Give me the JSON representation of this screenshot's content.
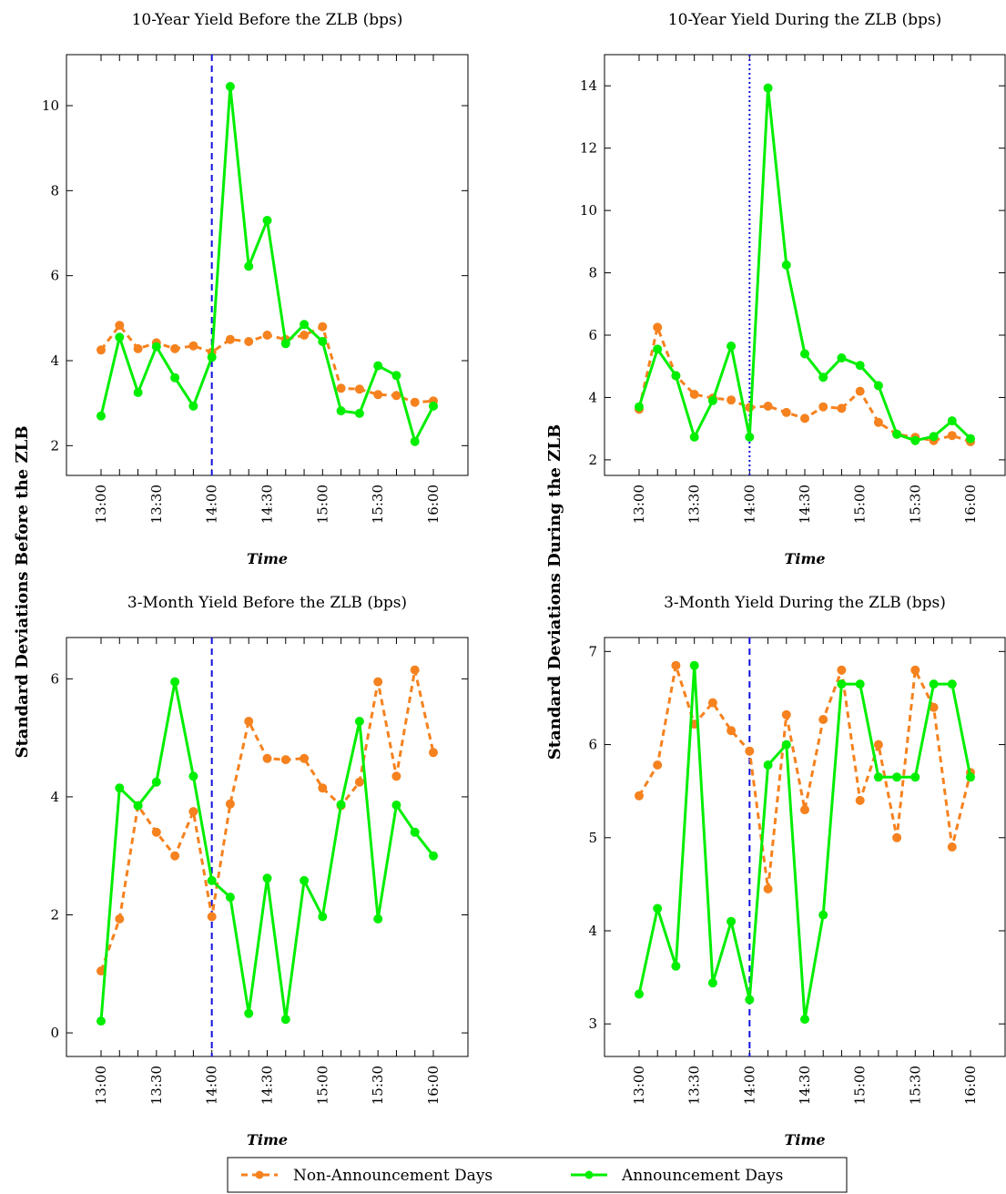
{
  "chart_data": {
    "type": "line",
    "ylabels": {
      "left": "Standard Deviations Before the ZLB",
      "right": "Standard Deviations During the ZLB"
    },
    "x": [
      "13:00",
      "13:10",
      "13:20",
      "13:30",
      "13:40",
      "13:50",
      "14:00",
      "14:10",
      "14:20",
      "14:30",
      "14:40",
      "14:50",
      "15:00",
      "15:10",
      "15:20",
      "15:30",
      "15:40",
      "15:50",
      "16:00"
    ],
    "xticks": [
      "13:00",
      "13:30",
      "14:00",
      "14:30",
      "15:00",
      "15:30",
      "16:00"
    ],
    "xlabel": "Time",
    "announcement_time": "14:00",
    "legend": {
      "placement": "bottom-center",
      "entries": [
        {
          "name": "Non-Announcement Days",
          "color": "#f5821f",
          "style": "dashed"
        },
        {
          "name": "Announcement Days",
          "color": "#00ee00",
          "style": "solid"
        }
      ]
    },
    "colors": {
      "non_announcement": "#f5821f",
      "announcement": "#00ee00",
      "vline": "#1010e0"
    },
    "panels": [
      {
        "title": "10-Year Yield Before the ZLB (bps)",
        "ylim": [
          1.3,
          11.2
        ],
        "yticks": [
          2,
          4,
          6,
          8,
          10
        ],
        "vline_style": "dashed",
        "series": [
          {
            "name": "Non-Announcement Days",
            "values": [
              4.25,
              4.83,
              4.28,
              4.42,
              4.28,
              4.35,
              4.2,
              4.5,
              4.45,
              4.6,
              4.5,
              4.6,
              4.8,
              3.35,
              3.33,
              3.2,
              3.18,
              3.02,
              3.05
            ]
          },
          {
            "name": "Announcement Days",
            "values": [
              2.7,
              4.55,
              3.25,
              4.33,
              3.6,
              2.93,
              4.08,
              10.45,
              6.22,
              7.3,
              4.4,
              4.85,
              4.45,
              2.82,
              2.76,
              3.88,
              3.65,
              2.1,
              2.93
            ]
          }
        ]
      },
      {
        "title": "10-Year Yield During the ZLB (bps)",
        "ylim": [
          1.5,
          15.0
        ],
        "yticks": [
          2,
          4,
          6,
          8,
          10,
          12,
          14
        ],
        "vline_style": "dotted",
        "series": [
          {
            "name": "Non-Announcement Days",
            "values": [
              3.62,
              6.25,
              4.7,
              4.1,
              3.98,
              3.92,
              3.68,
              3.72,
              3.52,
              3.33,
              3.7,
              3.65,
              4.2,
              3.2,
              2.82,
              2.72,
              2.62,
              2.78,
              2.58
            ]
          },
          {
            "name": "Announcement Days",
            "values": [
              3.7,
              5.55,
              4.7,
              2.73,
              3.9,
              5.65,
              2.73,
              13.93,
              8.25,
              5.4,
              4.65,
              5.27,
              5.03,
              4.38,
              2.82,
              2.62,
              2.75,
              3.25,
              2.68
            ]
          }
        ]
      },
      {
        "title": "3-Month Yield Before the ZLB (bps)",
        "ylim": [
          -0.4,
          6.7
        ],
        "yticks": [
          0,
          2,
          4,
          6
        ],
        "vline_style": "dashed",
        "series": [
          {
            "name": "Non-Announcement Days",
            "values": [
              1.05,
              1.93,
              3.85,
              3.4,
              3.0,
              3.75,
              1.97,
              3.88,
              5.28,
              4.65,
              4.63,
              4.65,
              4.15,
              3.85,
              4.25,
              5.95,
              4.35,
              6.15,
              4.75
            ]
          },
          {
            "name": "Announcement Days",
            "values": [
              0.2,
              4.15,
              3.85,
              4.25,
              5.95,
              4.35,
              2.58,
              2.3,
              0.33,
              2.62,
              0.23,
              2.58,
              1.97,
              3.87,
              5.28,
              1.93,
              3.86,
              3.4,
              3.0
            ]
          }
        ]
      },
      {
        "title": "3-Month Yield During the ZLB (bps)",
        "ylim": [
          2.65,
          7.15
        ],
        "yticks": [
          3,
          4,
          5,
          6,
          7
        ],
        "vline_style": "dashed",
        "series": [
          {
            "name": "Non-Announcement Days",
            "values": [
              5.45,
              5.78,
              6.85,
              6.22,
              6.45,
              6.15,
              5.93,
              4.45,
              6.32,
              5.3,
              6.27,
              6.8,
              5.4,
              6.0,
              5.0,
              6.8,
              6.4,
              4.9,
              5.7
            ]
          },
          {
            "name": "Announcement Days",
            "values": [
              3.32,
              4.24,
              3.62,
              6.85,
              3.44,
              4.1,
              3.26,
              5.78,
              6.0,
              3.05,
              4.17,
              6.65,
              6.65,
              5.65,
              5.65,
              5.65,
              6.65,
              6.65,
              5.65
            ]
          }
        ]
      }
    ]
  }
}
